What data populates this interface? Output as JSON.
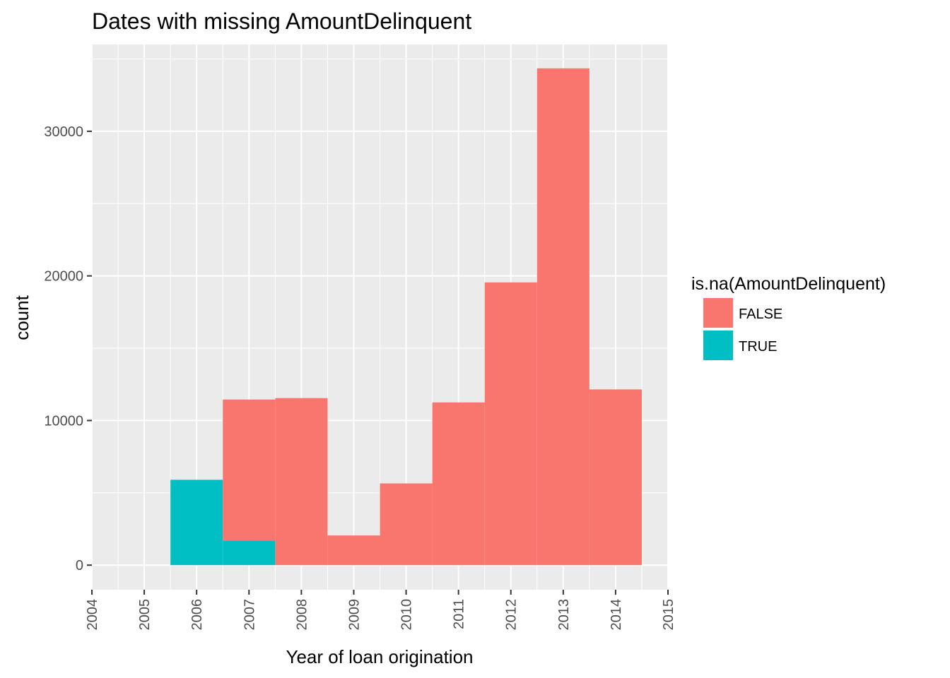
{
  "chart_data": {
    "type": "bar",
    "stacked": true,
    "title": "Dates with missing  AmountDelinquent",
    "xlabel": "Year of loan origination",
    "ylabel": "count",
    "x_ticks": [
      "2004",
      "2005",
      "2006",
      "2007",
      "2008",
      "2009",
      "2010",
      "2011",
      "2012",
      "2013",
      "2014",
      "2015"
    ],
    "y_ticks": [
      "0",
      "10000",
      "20000",
      "30000"
    ],
    "xlim": [
      2004,
      2015
    ],
    "ylim": [
      -1700,
      36000
    ],
    "categories": [
      "2006",
      "2007",
      "2008",
      "2009",
      "2010",
      "2011",
      "2012",
      "2013",
      "2014"
    ],
    "series": [
      {
        "name": "FALSE",
        "color": "#F8766D",
        "values": [
          0,
          9750,
          11550,
          2050,
          5650,
          11250,
          19550,
          34350,
          12150
        ]
      },
      {
        "name": "TRUE",
        "color": "#00BFC4",
        "values": [
          5900,
          1700,
          0,
          0,
          0,
          0,
          0,
          0,
          0
        ]
      }
    ],
    "legend": {
      "title": "is.na(AmountDelinquent)",
      "position": "right"
    },
    "grid": true,
    "panel_background": "#EBEBEB",
    "grid_color": "#FFFFFF"
  }
}
